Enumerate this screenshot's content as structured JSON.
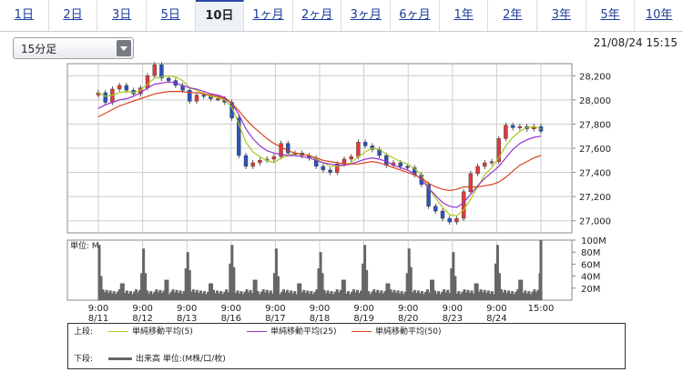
{
  "tabs": [
    {
      "label": "1日",
      "active": false
    },
    {
      "label": "2日",
      "active": false
    },
    {
      "label": "3日",
      "active": false
    },
    {
      "label": "5日",
      "active": false
    },
    {
      "label": "10日",
      "active": true
    },
    {
      "label": "1ヶ月",
      "active": false
    },
    {
      "label": "2ヶ月",
      "active": false
    },
    {
      "label": "3ヶ月",
      "active": false
    },
    {
      "label": "6ヶ月",
      "active": false
    },
    {
      "label": "1年",
      "active": false
    },
    {
      "label": "2年",
      "active": false
    },
    {
      "label": "3年",
      "active": false
    },
    {
      "label": "5年",
      "active": false
    },
    {
      "label": "10年",
      "active": false
    }
  ],
  "interval_select": {
    "value": "15分足"
  },
  "timestamp": "21/08/24 15:15",
  "chart_data": {
    "type": "line",
    "price": {
      "ylim": [
        26900,
        28300
      ],
      "yticks": [
        27000,
        27200,
        27400,
        27600,
        27800,
        28000,
        28200
      ],
      "ytick_labels": [
        "27,000",
        "27,200",
        "27,400",
        "27,600",
        "27,800",
        "28,000",
        "28,200"
      ],
      "grid": true,
      "series": [
        {
          "name": "単純移動平均(5)",
          "color": "#a8c81e",
          "values": []
        },
        {
          "name": "単純移動平均(25)",
          "color": "#9933cc",
          "values": []
        },
        {
          "name": "単純移動平均(50)",
          "color": "#d8451e",
          "values": []
        }
      ],
      "close": [
        28060,
        27980,
        28090,
        28120,
        28080,
        28050,
        28100,
        28200,
        28290,
        28180,
        28160,
        28120,
        28080,
        27990,
        28040,
        28030,
        28010,
        28010,
        27980,
        27850,
        27540,
        27450,
        27480,
        27500,
        27510,
        27530,
        27640,
        27560,
        27560,
        27540,
        27520,
        27450,
        27420,
        27400,
        27470,
        27510,
        27530,
        27650,
        27620,
        27590,
        27540,
        27460,
        27480,
        27450,
        27440,
        27380,
        27300,
        27120,
        27080,
        27020,
        26990,
        27020,
        27240,
        27390,
        27450,
        27480,
        27490,
        27680,
        27790,
        27770,
        27780,
        27760,
        27780,
        27740
      ],
      "line_points": {
        "ma5": [
          28060,
          28030,
          28040,
          28060,
          28070,
          28060,
          28080,
          28130,
          28180,
          28190,
          28200,
          28190,
          28160,
          28100,
          28080,
          28050,
          28030,
          28020,
          28000,
          27940,
          27800,
          27650,
          27570,
          27530,
          27500,
          27480,
          27520,
          27540,
          27560,
          27550,
          27540,
          27510,
          27480,
          27450,
          27450,
          27460,
          27480,
          27530,
          27570,
          27600,
          27590,
          27550,
          27520,
          27490,
          27470,
          27430,
          27380,
          27270,
          27190,
          27110,
          27050,
          27040,
          27090,
          27180,
          27280,
          27380,
          27440,
          27520,
          27620,
          27690,
          27740,
          27770,
          27780,
          27760
        ],
        "ma25": [
          27930,
          27960,
          27980,
          28000,
          28010,
          28030,
          28060,
          28100,
          28130,
          28140,
          28150,
          28140,
          28120,
          28100,
          28090,
          28070,
          28050,
          28040,
          28020,
          27970,
          27880,
          27760,
          27680,
          27620,
          27580,
          27560,
          27550,
          27540,
          27540,
          27530,
          27520,
          27500,
          27480,
          27470,
          27460,
          27460,
          27470,
          27490,
          27510,
          27520,
          27510,
          27490,
          27460,
          27440,
          27420,
          27390,
          27340,
          27270,
          27210,
          27150,
          27120,
          27110,
          27150,
          27220,
          27290,
          27350,
          27400,
          27450,
          27520,
          27590,
          27640,
          27670,
          27690,
          27700
        ],
        "ma50": [
          27860,
          27890,
          27920,
          27950,
          27970,
          27990,
          28010,
          28030,
          28050,
          28060,
          28070,
          28070,
          28070,
          28060,
          28060,
          28050,
          28040,
          28030,
          28010,
          27970,
          27910,
          27840,
          27780,
          27730,
          27680,
          27640,
          27610,
          27580,
          27560,
          27550,
          27540,
          27520,
          27500,
          27490,
          27480,
          27470,
          27470,
          27470,
          27480,
          27490,
          27480,
          27460,
          27440,
          27420,
          27400,
          27380,
          27350,
          27310,
          27280,
          27260,
          27250,
          27260,
          27280,
          27280,
          27280,
          27290,
          27300,
          27320,
          27360,
          27410,
          27460,
          27490,
          27520,
          27540
        ]
      }
    },
    "volume": {
      "unit_label": "単位: M",
      "ylim": [
        0,
        100
      ],
      "yticks": [
        20,
        40,
        60,
        80,
        100
      ],
      "ytick_labels": [
        "20M",
        "40M",
        "60M",
        "80M",
        "100M"
      ],
      "values": []
    },
    "x_ticks": [
      {
        "time": "9:00",
        "date": "8/11"
      },
      {
        "time": "9:00",
        "date": "8/12"
      },
      {
        "time": "9:00",
        "date": "8/13"
      },
      {
        "time": "9:00",
        "date": "8/16"
      },
      {
        "time": "9:00",
        "date": "8/17"
      },
      {
        "time": "9:00",
        "date": "8/18"
      },
      {
        "time": "9:00",
        "date": "8/19"
      },
      {
        "time": "9:00",
        "date": "8/20"
      },
      {
        "time": "9:00",
        "date": "8/23"
      },
      {
        "time": "9:00",
        "date": "8/24"
      },
      {
        "time": "15:00",
        "date": ""
      }
    ]
  },
  "legend": {
    "upper_label": "上段:",
    "lower_label": "下段:",
    "items": [
      {
        "label": "単純移動平均(5)",
        "color": "#a8c81e"
      },
      {
        "label": "単純移動平均(25)",
        "color": "#9933cc"
      },
      {
        "label": "単純移動平均(50)",
        "color": "#d8451e"
      }
    ],
    "volume_item": {
      "label": "出来高 単位:(M株/口/枚)",
      "color": "#666666"
    }
  }
}
